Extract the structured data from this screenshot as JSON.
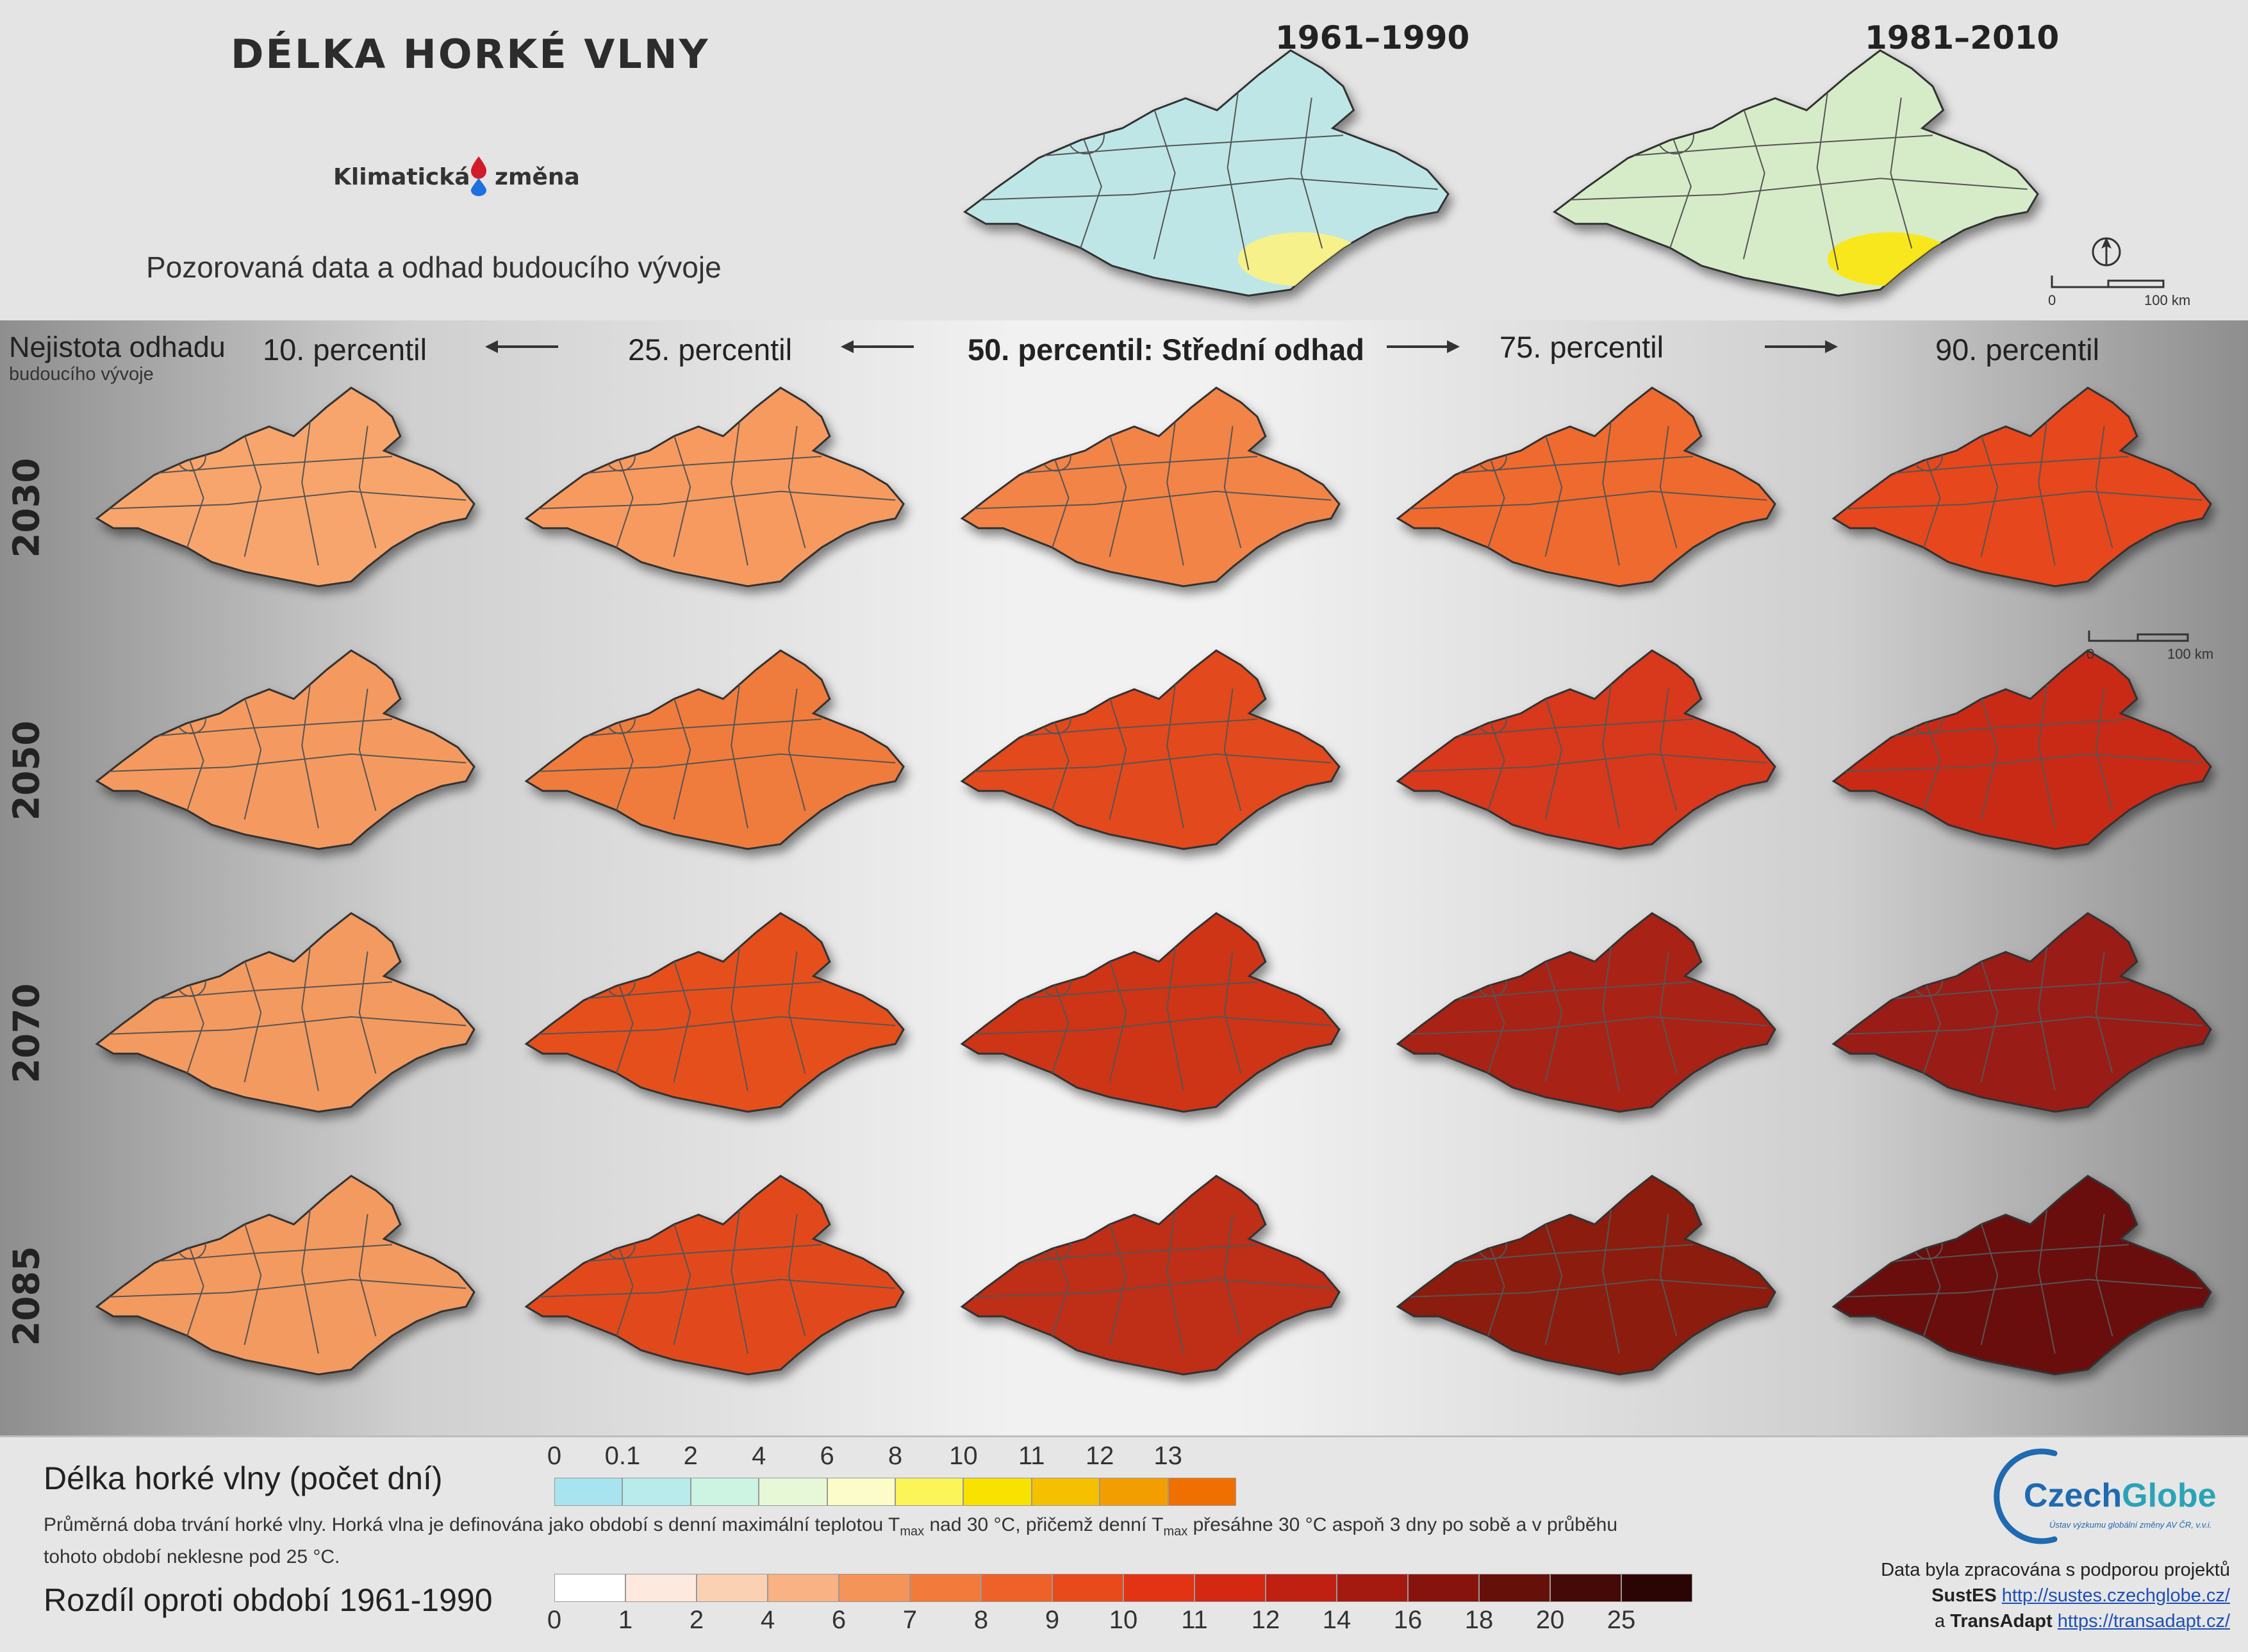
{
  "header": {
    "title": "DÉLKA HORKÉ VLNY",
    "logo_part1": "Klimatická",
    "logo_part2": "změna",
    "subtitle": "Pozorovaná data a odhad budoucího vývoje",
    "periods": [
      {
        "label": "1961–1990",
        "fill": "#bfe6e6",
        "hot": "#fff27a"
      },
      {
        "label": "1981–2010",
        "fill": "#d6ecc8",
        "hot": "#ffe600"
      }
    ],
    "scale_zero": "0",
    "scale_max": "100 km"
  },
  "grid": {
    "uncertainty_label_1": "Nejistota odhadu",
    "uncertainty_label_2": "budoucího vývoje",
    "percentiles": [
      "10. percentil",
      "25. percentil",
      "50. percentil: Střední odhad",
      "75. percentil",
      "90. percentil"
    ],
    "years": [
      "2030",
      "2050",
      "2070",
      "2085"
    ],
    "map_colors": [
      [
        "#f7a56c",
        "#f79a5e",
        "#f28447",
        "#ef6a2e",
        "#e6461f"
      ],
      [
        "#f49a60",
        "#ef7b3e",
        "#e2481f",
        "#d8381a",
        "#c92c16"
      ],
      [
        "#f39a60",
        "#e5501f",
        "#cd3619",
        "#a92417",
        "#9a1d13"
      ],
      [
        "#f39a60",
        "#e14a1f",
        "#bf2e16",
        "#8c1c10",
        "#6b110b"
      ]
    ],
    "scale_zero": "0",
    "scale_max": "100 km"
  },
  "legend": {
    "title1": "Délka horké vlny (počet dní)",
    "scale1_ticks": [
      "0",
      "0.1",
      "2",
      "4",
      "6",
      "8",
      "10",
      "11",
      "12",
      "13"
    ],
    "scale1_colors": [
      "#a8e4ef",
      "#b8ecec",
      "#cdf3e3",
      "#e6f8d6",
      "#fbfcc8",
      "#fbf55a",
      "#f9e100",
      "#f5c000",
      "#f39e00",
      "#ef6f00"
    ],
    "description_part1": "Průměrná doba trvání horké vlny. Horká vlna je definována jako období s denní maximální teplotou T",
    "description_sub1": "max",
    "description_part2": " nad 30 °C, přičemž denní T",
    "description_sub2": "max",
    "description_part3": " přesáhne 30 °C aspoň 3 dny po sobě a v průběhu",
    "description_line2": "tohoto období neklesne pod 25 °C.",
    "title2": "Rozdíl oproti období 1961-1990",
    "scale2_ticks": [
      "0",
      "1",
      "2",
      "4",
      "6",
      "7",
      "8",
      "9",
      "10",
      "11",
      "12",
      "14",
      "16",
      "18",
      "20",
      "25"
    ],
    "scale2_colors": [
      "#ffffff",
      "#fde9dd",
      "#fbd1b4",
      "#f8b283",
      "#f59458",
      "#f27a3a",
      "#ee6128",
      "#e84a1c",
      "#e23315",
      "#d42812",
      "#bf2012",
      "#a51a10",
      "#86140d",
      "#66100a",
      "#450907",
      "#2a0504"
    ]
  },
  "credits": {
    "logo_czech": "Czech",
    "logo_globe": "Globe",
    "logo_sub": "Ústav výzkumu globální změny AV ČR, v.v.i.",
    "line1": "Data byla zpracována s podporou projektů",
    "project1": "SustES",
    "link1": "http://sustes.czechglobe.cz/",
    "line3_prefix": "a",
    "project2": "TransAdapt",
    "link2": "https://transadapt.cz/"
  }
}
